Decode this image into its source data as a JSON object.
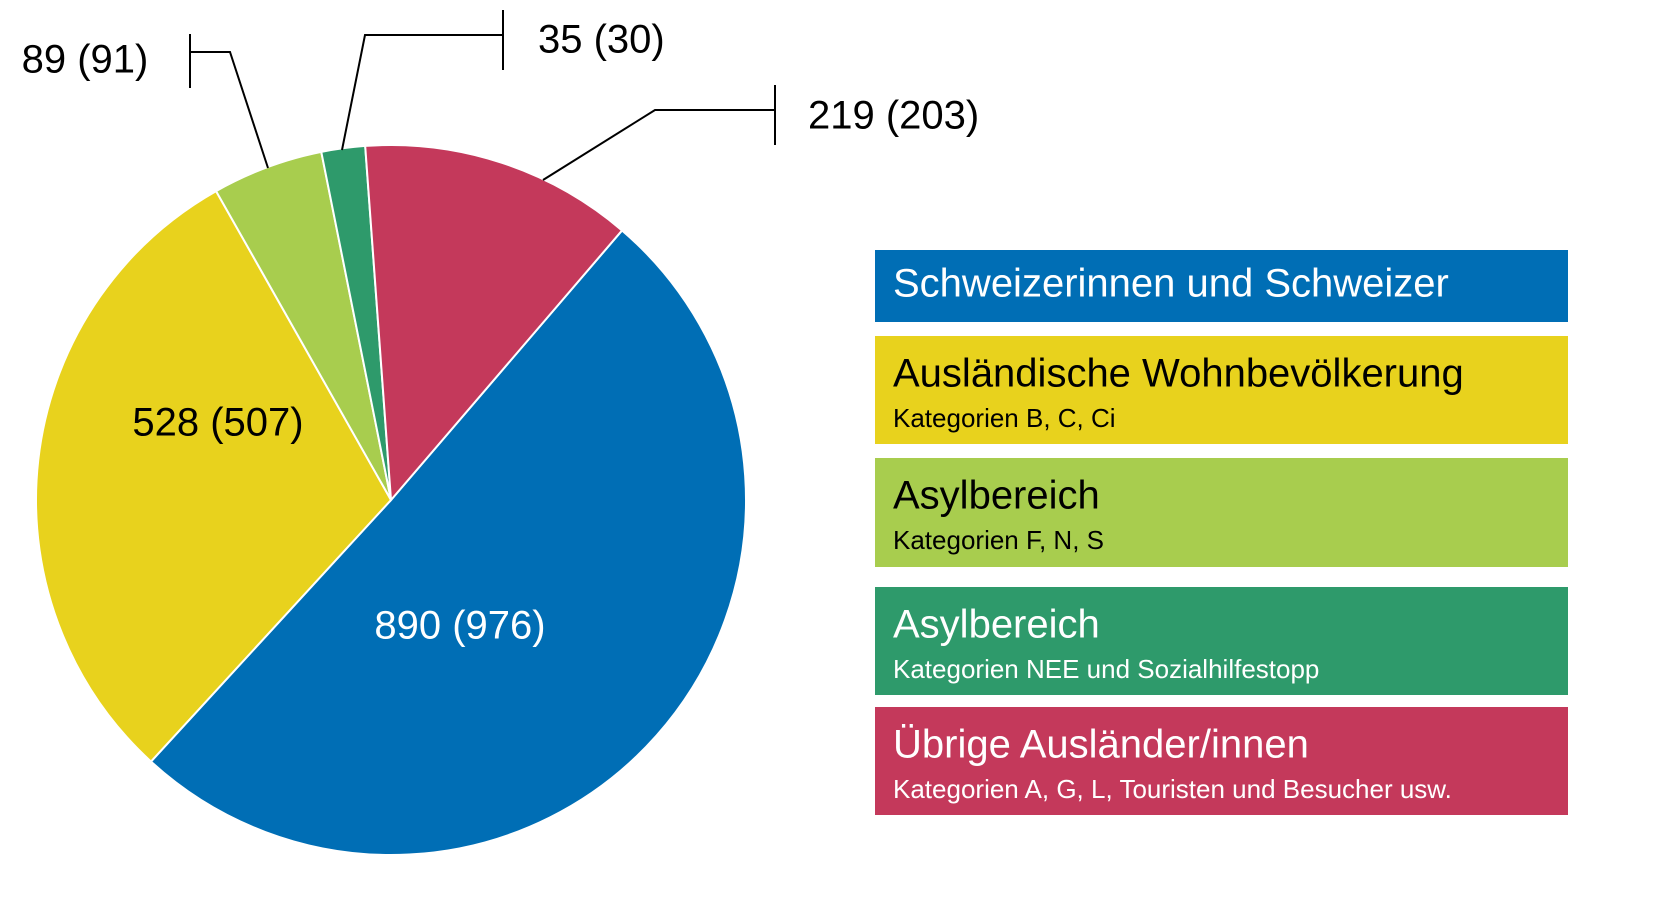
{
  "chart_data": {
    "type": "pie",
    "categories": [
      "Schweizerinnen und Schweizer",
      "Ausländische Wohnbevölkerung",
      "Asylbereich",
      "Asylbereich",
      "Übrige Ausländer/innen"
    ],
    "category_notes": [
      null,
      "Kategorien B, C, Ci",
      "Kategorien F, N, S",
      "Kategorien NEE und Sozialhilfestopp",
      "Kategorien A, G, L, Touristen und Besucher usw."
    ],
    "values": [
      890,
      528,
      89,
      35,
      219
    ],
    "value_labels": [
      "890 (976)",
      "528 (507)",
      "89 (91)",
      "35 (30)",
      "219 (203)"
    ],
    "colors": [
      "#006eb5",
      "#e8d21d",
      "#a8cd4e",
      "#2e9a6b",
      "#c4395b"
    ],
    "legend": "right"
  }
}
